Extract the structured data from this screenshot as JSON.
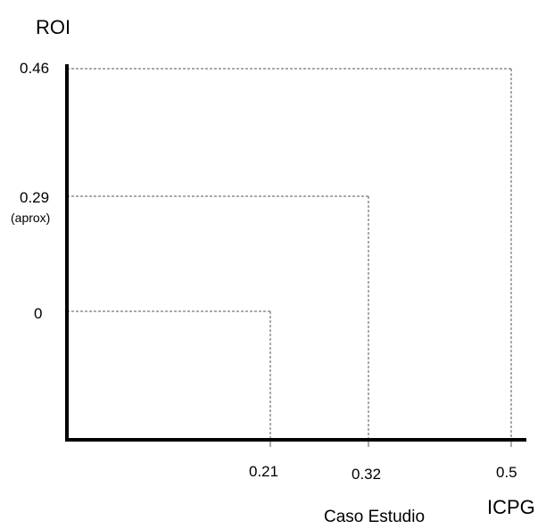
{
  "chart_data": {
    "type": "line",
    "ylabel": "ROI",
    "xlabel": "ICPG",
    "subtitle": "Caso Estudio",
    "x_ticks": [
      "0.21",
      "0.32",
      "0.5"
    ],
    "y_ticks": [
      "0.46",
      "0.29",
      "0"
    ],
    "y_tick_note": "(aprox)",
    "points": [
      {
        "x": 0.21,
        "y": 0
      },
      {
        "x": 0.32,
        "y": 0.29
      },
      {
        "x": 0.5,
        "y": 0.46
      }
    ],
    "grid": false,
    "colors": {
      "axis": "#000000",
      "guide": "#555555",
      "text": "#000000"
    }
  }
}
